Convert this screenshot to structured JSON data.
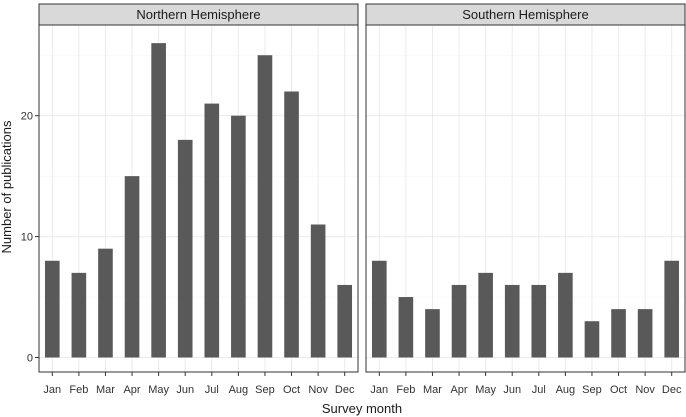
{
  "chart_data": {
    "type": "bar",
    "xlabel": "Survey month",
    "ylabel": "Number of publications",
    "ylim": [
      -1.2,
      27.5
    ],
    "yticks": [
      0,
      10,
      20
    ],
    "bar_color": "#595959",
    "strip_color": "#d9d9d9",
    "grid": true,
    "categories": [
      "Jan",
      "Feb",
      "Mar",
      "Apr",
      "May",
      "Jun",
      "Jul",
      "Aug",
      "Sep",
      "Oct",
      "Nov",
      "Dec"
    ],
    "panels": [
      {
        "title": "Northern Hemisphere",
        "values": [
          8,
          7,
          9,
          15,
          26,
          18,
          21,
          20,
          25,
          22,
          11,
          6
        ]
      },
      {
        "title": "Southern Hemisphere",
        "values": [
          8,
          5,
          4,
          6,
          7,
          6,
          6,
          7,
          3,
          4,
          4,
          8
        ]
      }
    ]
  }
}
